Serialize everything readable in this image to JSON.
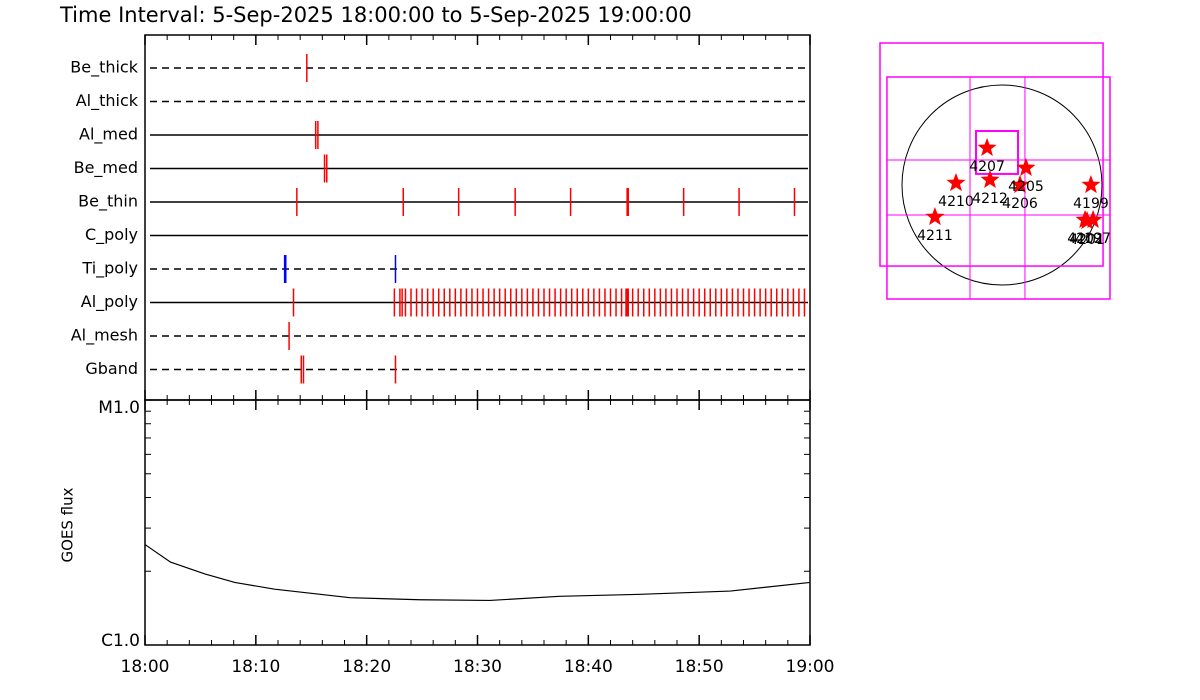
{
  "chart_data": [
    {
      "type": "timeline",
      "title": "Time Interval:  5-Sep-2025 18:00:00 to  5-Sep-2025 19:00:00",
      "xlim": [
        0,
        60
      ],
      "rows": [
        {
          "name": "Be_thick",
          "line": "dashed",
          "color": "#ff0000",
          "events": [
            14.6
          ]
        },
        {
          "name": "Al_thick",
          "line": "dashed",
          "color": "#ff0000",
          "events": []
        },
        {
          "name": "Al_med",
          "line": "solid",
          "color": "#ff0000",
          "events": [
            15.4,
            15.6
          ]
        },
        {
          "name": "Be_med",
          "line": "solid",
          "color": "#ff0000",
          "events": [
            16.2,
            16.4
          ]
        },
        {
          "name": "Be_thin",
          "line": "solid",
          "color": "#ff0000",
          "events": [
            13.7,
            23.3,
            28.3,
            33.4,
            38.4,
            43.5,
            43.6,
            48.6,
            53.6,
            58.6
          ]
        },
        {
          "name": "C_poly",
          "line": "solid",
          "color": "#ff0000",
          "events": []
        },
        {
          "name": "Ti_poly",
          "line": "dashed",
          "color": "#0000ff",
          "events": [
            12.6,
            12.7,
            22.6
          ]
        },
        {
          "name": "Al_poly",
          "line": "solid",
          "color": "#ff0000",
          "events": [
            13.4,
            22.5,
            23,
            23.2,
            23.5,
            24,
            24.5,
            25,
            25.5,
            26,
            26.5,
            27,
            27.5,
            28,
            28.5,
            29,
            29.5,
            30,
            30.5,
            31,
            31.5,
            32,
            32.5,
            33,
            33.5,
            34,
            34.5,
            35,
            35.5,
            36,
            36.5,
            37,
            37.5,
            38,
            38.5,
            39,
            39.5,
            40,
            40.5,
            41,
            41.5,
            42,
            42.5,
            43,
            43.4,
            43.5,
            43.6,
            44,
            44.5,
            45,
            45.5,
            46,
            46.5,
            47,
            47.5,
            48,
            48.5,
            49,
            49.5,
            50,
            50.5,
            51,
            51.5,
            52,
            52.5,
            53,
            53.5,
            54,
            54.5,
            55,
            55.5,
            56,
            56.5,
            57,
            57.5,
            58,
            58.5,
            59,
            59.5
          ]
        },
        {
          "name": "Al_mesh",
          "line": "dashed",
          "color": "#ff0000",
          "events": [
            13.0
          ]
        },
        {
          "name": "Gband",
          "line": "dashed",
          "color": "#ff0000",
          "events": [
            14.1,
            14.3,
            22.6
          ]
        }
      ]
    },
    {
      "type": "line",
      "ylabel": "GOES flux",
      "xlim": [
        0,
        60
      ],
      "xticks": [
        {
          "value": 0,
          "label": "18:00"
        },
        {
          "value": 10,
          "label": "18:10"
        },
        {
          "value": 20,
          "label": "18:20"
        },
        {
          "value": 30,
          "label": "18:30"
        },
        {
          "value": 40,
          "label": "18:40"
        },
        {
          "value": 50,
          "label": "18:50"
        },
        {
          "value": 60,
          "label": "19:00"
        }
      ],
      "xticks_minor": [
        2,
        4,
        6,
        8,
        12,
        14,
        16,
        18,
        22,
        24,
        26,
        28,
        32,
        34,
        36,
        38,
        42,
        44,
        46,
        48,
        52,
        54,
        56,
        58
      ],
      "ylim": [
        1,
        10
      ],
      "log_y": true,
      "yticks": [
        {
          "value": 1,
          "label": "C1.0"
        },
        {
          "value": 10,
          "label": "M1.0"
        }
      ],
      "yticks_minor": [
        2,
        3,
        4,
        5,
        6,
        7,
        8,
        9
      ],
      "x": [
        0,
        2.3,
        5.4,
        8.1,
        11.7,
        18.5,
        24.8,
        31.1,
        37.4,
        44.7,
        52.8,
        60
      ],
      "series": [
        {
          "color": "#000000",
          "values": [
            2.57,
            2.18,
            1.95,
            1.8,
            1.69,
            1.56,
            1.53,
            1.52,
            1.58,
            1.61,
            1.66,
            1.8
          ]
        }
      ]
    },
    {
      "type": "map",
      "disk_radius": 950,
      "box_color": "#ff00ff",
      "marker_color": "#ff0000",
      "boxes": [
        [
          -1159,
          1349,
          960,
          -770
        ],
        [
          -1093,
          1026,
          1026,
          -1083
        ],
        [
          -247,
          513,
          152,
          105
        ]
      ],
      "grid_x": [
        -304,
        218
      ],
      "grid_y": [
        238,
        -285
      ],
      "regions": [
        {
          "label": "4207",
          "x": -142,
          "y": 352
        },
        {
          "label": "4210",
          "x": -437,
          "y": 19
        },
        {
          "label": "4212",
          "x": -114,
          "y": 48
        },
        {
          "label": "4205",
          "x": 228,
          "y": 162
        },
        {
          "label": "4206",
          "x": 171,
          "y": 0
        },
        {
          "label": "4199",
          "x": 845,
          "y": 0
        },
        {
          "label": "4211",
          "x": -637,
          "y": -304
        },
        {
          "label": "4202",
          "x": 789,
          "y": -332
        },
        {
          "label": "4197",
          "x": 865,
          "y": -332
        },
        {
          "label": "4201",
          "x": 808,
          "y": -342
        }
      ]
    }
  ]
}
